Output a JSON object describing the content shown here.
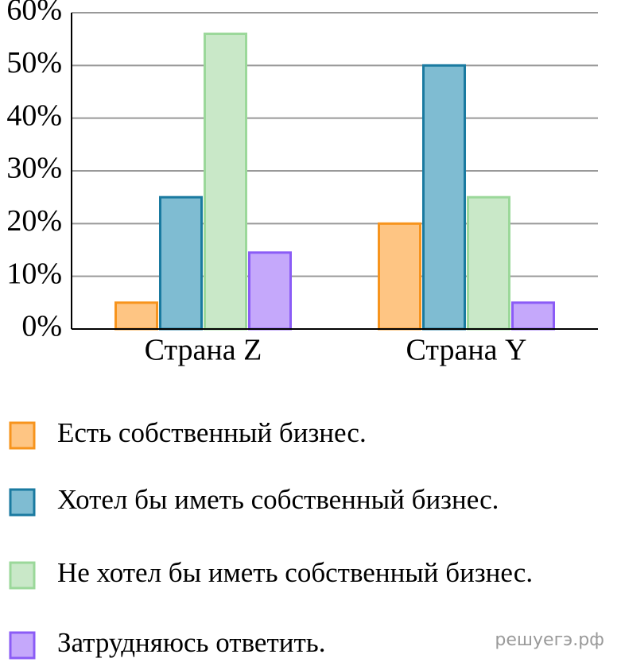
{
  "chart_data": {
    "type": "bar",
    "categories": [
      "Страна Z",
      "Страна Y"
    ],
    "series": [
      {
        "name": "Есть собственный бизнес.",
        "color": "#fec583",
        "edge_color": "#f7941d",
        "values": [
          5,
          20
        ]
      },
      {
        "name": "Хотел бы иметь собственный бизнес.",
        "color": "#7fbcd2",
        "edge_color": "#1a7aa0",
        "values": [
          25,
          50
        ]
      },
      {
        "name": "Не хотел бы иметь собственный бизнес.",
        "color": "#c9e8c8",
        "edge_color": "#9bd89a",
        "values": [
          56,
          25
        ]
      },
      {
        "name": "Затрудняюсь ответить.",
        "color": "#c5a8fb",
        "edge_color": "#8b5cf6",
        "values": [
          14.5,
          5
        ]
      }
    ],
    "ylim": [
      0,
      60
    ],
    "yticks": [
      {
        "value": 0,
        "label": "0%"
      },
      {
        "value": 10,
        "label": "10%"
      },
      {
        "value": 20,
        "label": "20%"
      },
      {
        "value": 30,
        "label": "30%"
      },
      {
        "value": 40,
        "label": "40%"
      },
      {
        "value": 50,
        "label": "50%"
      },
      {
        "value": 60,
        "label": "60%"
      }
    ],
    "grid": true,
    "watermark": "решуегэ.рф"
  }
}
